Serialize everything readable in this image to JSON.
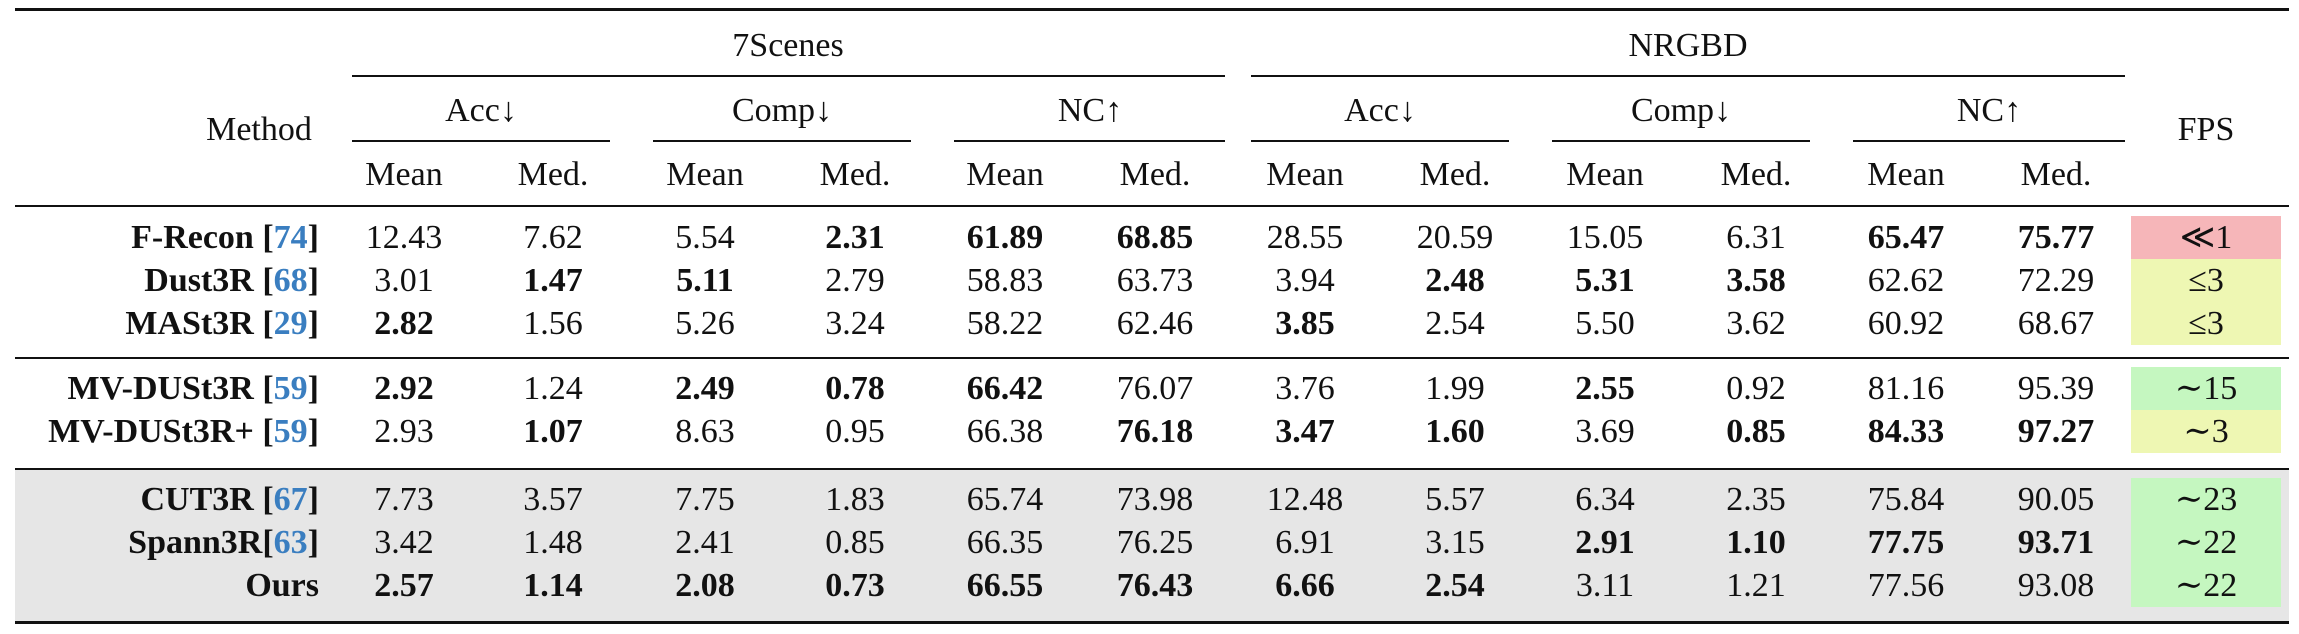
{
  "header": {
    "method": "Method",
    "group1": "7Scenes",
    "group2": "NRGBD",
    "fps": "FPS",
    "metrics": [
      "Acc↓",
      "Comp↓",
      "NC↑",
      "Acc↓",
      "Comp↓",
      "NC↑"
    ],
    "stats": [
      "Mean",
      "Med.",
      "Mean",
      "Med.",
      "Mean",
      "Med.",
      "Mean",
      "Med.",
      "Mean",
      "Med.",
      "Mean",
      "Med."
    ]
  },
  "colors": {
    "red": "#f6b6b9",
    "yellow": "#eef7b3",
    "green": "#c5f7c0",
    "shade": "#e6e6e6",
    "ref": "#3a7ec0"
  },
  "rows": [
    {
      "name": "F-Recon [",
      "ref": "74",
      "close": "]",
      "cells": [
        "12.43",
        "7.62",
        "5.54",
        "2.31",
        "61.89",
        "68.85",
        "28.55",
        "20.59",
        "15.05",
        "6.31",
        "65.47",
        "75.77"
      ],
      "bold": [
        3,
        4,
        5,
        10,
        11
      ],
      "fps": "≪1",
      "fps_color": "red"
    },
    {
      "name": "Dust3R [",
      "ref": "68",
      "close": "]",
      "cells": [
        "3.01",
        "1.47",
        "5.11",
        "2.79",
        "58.83",
        "63.73",
        "3.94",
        "2.48",
        "5.31",
        "3.58",
        "62.62",
        "72.29"
      ],
      "bold": [
        1,
        2,
        7,
        8,
        9
      ],
      "fps": "≤3",
      "fps_color": "yellow"
    },
    {
      "name": "MASt3R [",
      "ref": "29",
      "close": "]",
      "cells": [
        "2.82",
        "1.56",
        "5.26",
        "3.24",
        "58.22",
        "62.46",
        "3.85",
        "2.54",
        "5.50",
        "3.62",
        "60.92",
        "68.67"
      ],
      "bold": [
        0,
        6
      ],
      "fps": "≤3",
      "fps_color": "yellow"
    },
    {
      "name": "MV-DUSt3R [",
      "ref": "59",
      "close": "]",
      "cells": [
        "2.92",
        "1.24",
        "2.49",
        "0.78",
        "66.42",
        "76.07",
        "3.76",
        "1.99",
        "2.55",
        "0.92",
        "81.16",
        "95.39"
      ],
      "bold": [
        0,
        2,
        3,
        4,
        8
      ],
      "fps": "∼15",
      "fps_color": "green"
    },
    {
      "name": "MV-DUSt3R+ [",
      "ref": "59",
      "close": "]",
      "cells": [
        "2.93",
        "1.07",
        "8.63",
        "0.95",
        "66.38",
        "76.18",
        "3.47",
        "1.60",
        "3.69",
        "0.85",
        "84.33",
        "97.27"
      ],
      "bold": [
        1,
        5,
        6,
        7,
        9,
        10,
        11
      ],
      "fps": "∼3",
      "fps_color": "yellow"
    },
    {
      "name": "CUT3R [",
      "ref": "67",
      "close": "]",
      "cells": [
        "7.73",
        "3.57",
        "7.75",
        "1.83",
        "65.74",
        "73.98",
        "12.48",
        "5.57",
        "6.34",
        "2.35",
        "75.84",
        "90.05"
      ],
      "bold": [],
      "fps": "∼23",
      "fps_color": "green"
    },
    {
      "name": "Spann3R[",
      "ref": "63",
      "close": "]",
      "cells": [
        "3.42",
        "1.48",
        "2.41",
        "0.85",
        "66.35",
        "76.25",
        "6.91",
        "3.15",
        "2.91",
        "1.10",
        "77.75",
        "93.71"
      ],
      "bold": [
        8,
        9,
        10,
        11
      ],
      "fps": "∼22",
      "fps_color": "green"
    },
    {
      "name": "Ours",
      "ref": "",
      "close": "",
      "cells": [
        "2.57",
        "1.14",
        "2.08",
        "0.73",
        "66.55",
        "76.43",
        "6.66",
        "2.54",
        "3.11",
        "1.21",
        "77.56",
        "93.08"
      ],
      "bold": [
        0,
        1,
        2,
        3,
        4,
        5,
        6,
        7
      ],
      "fps": "∼22",
      "fps_color": "green"
    }
  ]
}
